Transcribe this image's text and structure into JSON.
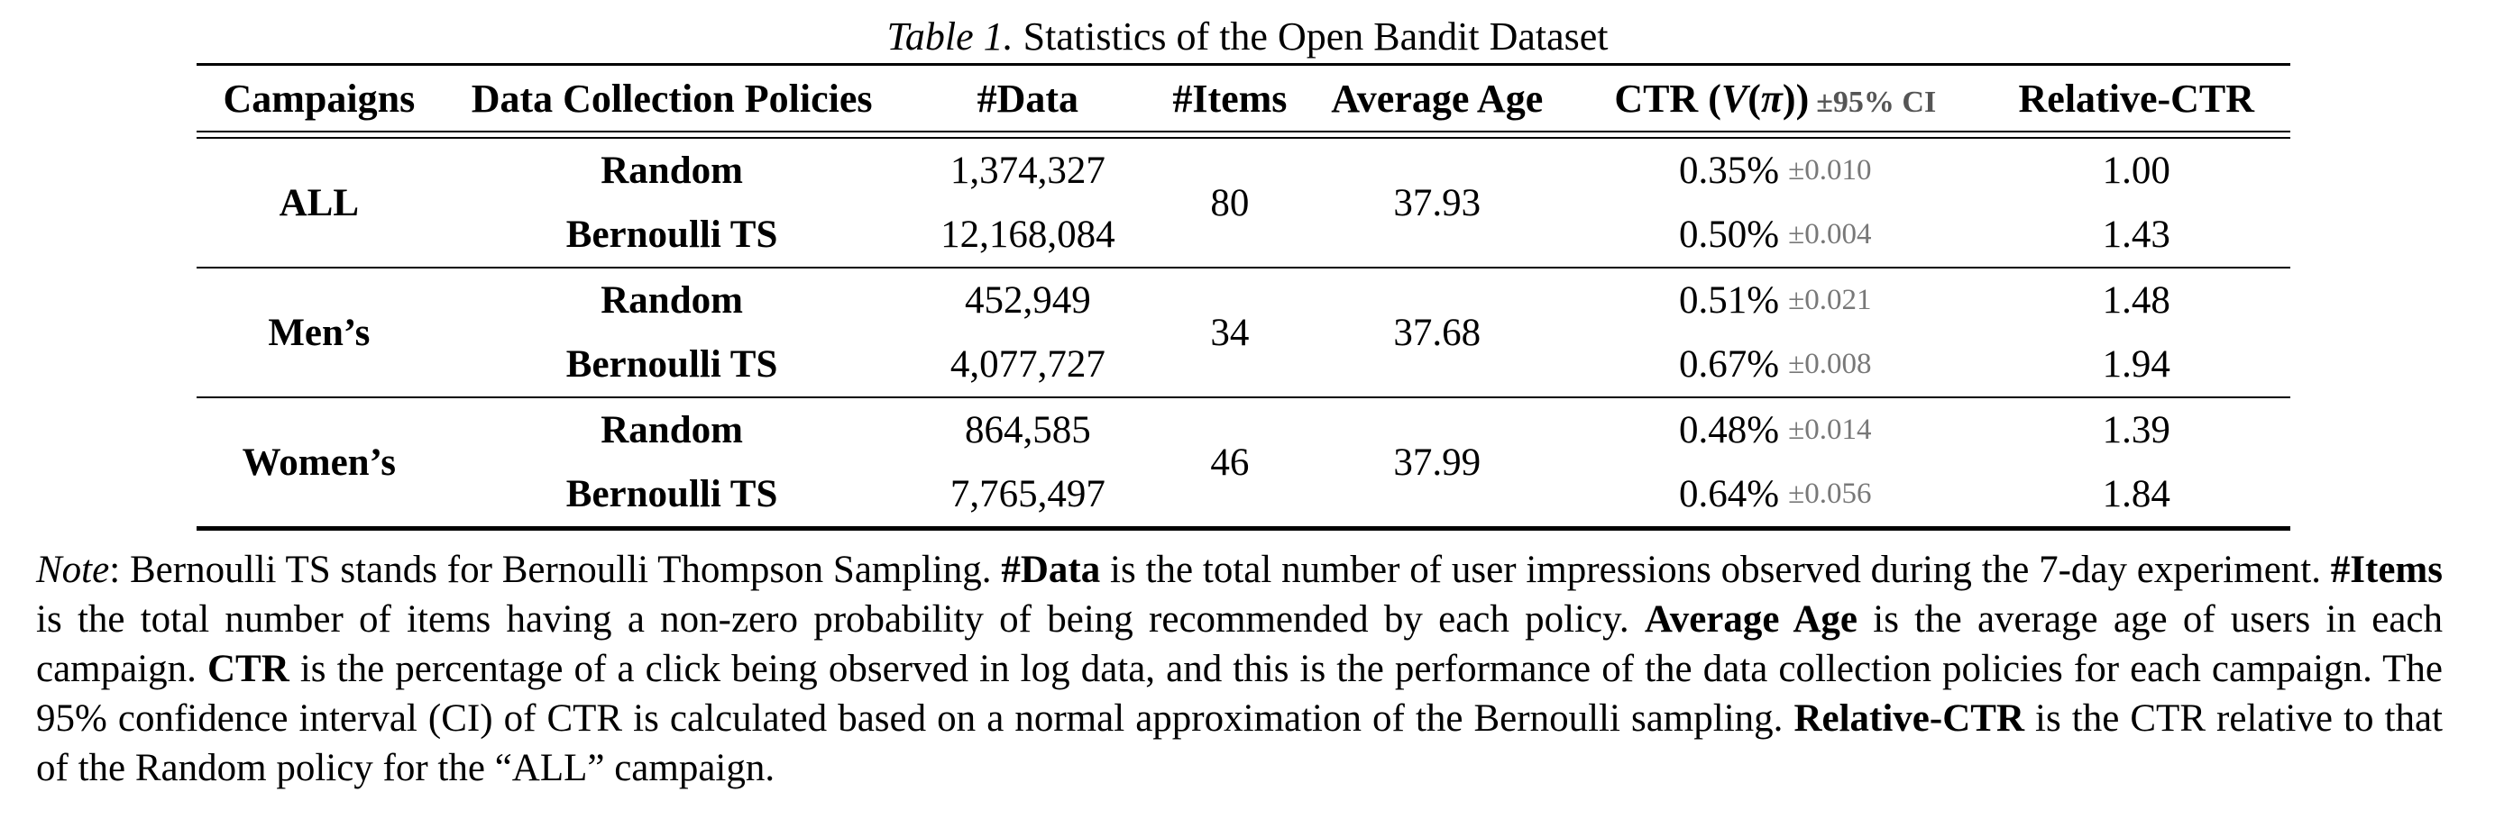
{
  "page": {
    "background": "#ffffff",
    "text_color": "#000000",
    "ci_gray": "#787878",
    "rule_color": "#000000"
  },
  "caption": {
    "segments": [
      {
        "t": "Table 1.",
        "i": true
      },
      {
        "t": " Statistics of the Open Bandit Dataset"
      }
    ]
  },
  "table": {
    "headers": {
      "campaigns": "Campaigns",
      "policies": "Data Collection Policies",
      "data": "#Data",
      "items": "#Items",
      "age": "Average Age",
      "ctr": {
        "segments": [
          {
            "t": "CTR ",
            "b": true
          },
          {
            "t": "("
          },
          {
            "t": "V",
            "i": true
          },
          {
            "t": "("
          },
          {
            "t": "π",
            "i": true
          },
          {
            "t": "))"
          },
          {
            "t": "±95% CI",
            "ci": true
          }
        ]
      },
      "relative_ctr": "Relative-CTR"
    },
    "groups": [
      {
        "campaign": "ALL",
        "items": "80",
        "avg_age": "37.93",
        "rows": [
          {
            "policy": "Random",
            "data": "1,374,327",
            "ctr": "0.35%",
            "ci": "±0.010",
            "relative_ctr": "1.00"
          },
          {
            "policy": "Bernoulli TS",
            "data": "12,168,084",
            "ctr": "0.50%",
            "ci": "±0.004",
            "relative_ctr": "1.43"
          }
        ]
      },
      {
        "campaign": "Men’s",
        "items": "34",
        "avg_age": "37.68",
        "rows": [
          {
            "policy": "Random",
            "data": "452,949",
            "ctr": "0.51%",
            "ci": "±0.021",
            "relative_ctr": "1.48"
          },
          {
            "policy": "Bernoulli TS",
            "data": "4,077,727",
            "ctr": "0.67%",
            "ci": "±0.008",
            "relative_ctr": "1.94"
          }
        ]
      },
      {
        "campaign": "Women’s",
        "items": "46",
        "avg_age": "37.99",
        "rows": [
          {
            "policy": "Random",
            "data": "864,585",
            "ctr": "0.48%",
            "ci": "±0.014",
            "relative_ctr": "1.39"
          },
          {
            "policy": "Bernoulli TS",
            "data": "7,765,497",
            "ctr": "0.64%",
            "ci": "±0.056",
            "relative_ctr": "1.84"
          }
        ]
      }
    ]
  },
  "note": {
    "segments": [
      {
        "t": "Note",
        "i": true
      },
      {
        "t": ": Bernoulli TS stands for Bernoulli Thompson Sampling. "
      },
      {
        "t": "#Data",
        "b": true
      },
      {
        "t": " is the total number of user impressions observed during the 7-day experiment. "
      },
      {
        "t": "#Items",
        "b": true
      },
      {
        "t": " is the total number of items having a non-zero probability of being recommended by each policy. "
      },
      {
        "t": "Average Age",
        "b": true
      },
      {
        "t": " is the average age of users in each campaign. "
      },
      {
        "t": "CTR",
        "b": true
      },
      {
        "t": " is the percentage of a click being observed in log data, and this is the performance of the data collection policies for each campaign. The 95% confidence interval (CI) of CTR is calculated based on a normal approximation of the Bernoulli sampling. "
      },
      {
        "t": "Relative-CTR",
        "b": true
      },
      {
        "t": " is the CTR relative to that of the Random policy for the “ALL” campaign."
      }
    ]
  }
}
